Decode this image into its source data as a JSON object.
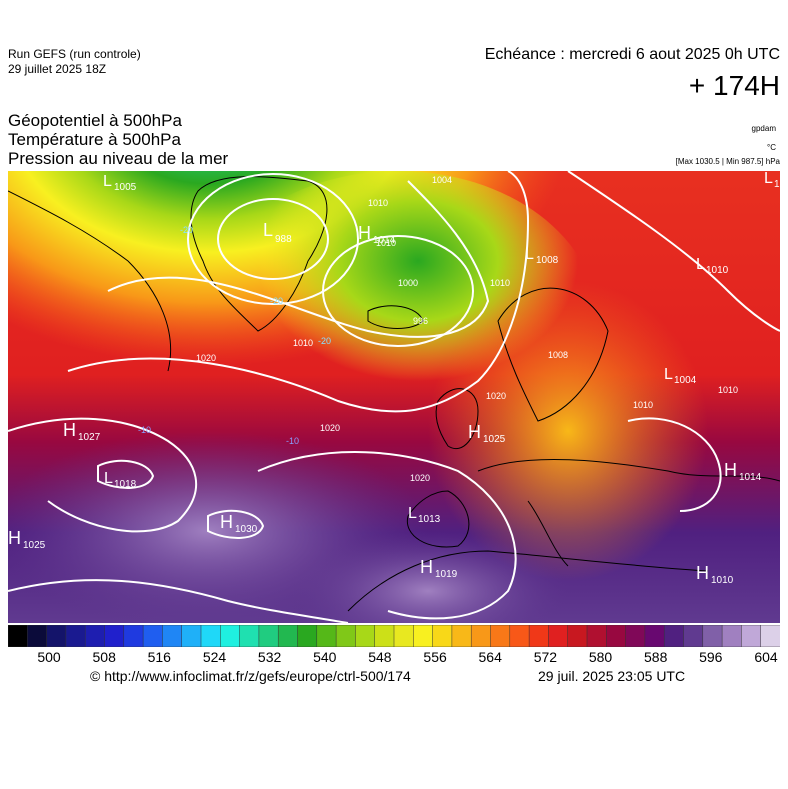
{
  "header": {
    "run": "Run GEFS (run controle)",
    "run_date": "29 juillet 2025 18Z",
    "valid": "Echéance : mercredi 6 aout 2025 0h UTC",
    "lead": "+ 174H",
    "field1": "Géopotentiel à 500hPa",
    "field2": "Température à 500hPa",
    "field3": "Pression au niveau de la mer",
    "unit1": "gpdam",
    "unit2": "°C",
    "unit3": "[Max 1030.5 | Min 987.5] hPa"
  },
  "map": {
    "pressure_centers": [
      {
        "type": "L",
        "value": "1005"
      },
      {
        "type": "L",
        "value": "988"
      },
      {
        "type": "H",
        "value": "1014"
      },
      {
        "type": "L",
        "value": "1008"
      },
      {
        "type": "L",
        "value": "1010"
      },
      {
        "type": "L",
        "value": "1"
      },
      {
        "type": "H",
        "value": "1027"
      },
      {
        "type": "L",
        "value": "1018"
      },
      {
        "type": "H",
        "value": "1030"
      },
      {
        "type": "H",
        "value": "1025"
      },
      {
        "type": "L",
        "value": "1013"
      },
      {
        "type": "H",
        "value": "1019"
      },
      {
        "type": "H",
        "value": "1025"
      },
      {
        "type": "L",
        "value": "1004"
      },
      {
        "type": "H",
        "value": "1014"
      },
      {
        "type": "H",
        "value": "1010"
      }
    ],
    "isobar_labels": [
      "1004",
      "1010",
      "1010",
      "1000",
      "996",
      "1010",
      "1020",
      "1020",
      "1020",
      "1020",
      "1010",
      "1010",
      "1010",
      "1008",
      "-20",
      "-20",
      "-20",
      "-10",
      "-10"
    ]
  },
  "colorbar": {
    "colors": [
      "#000000",
      "#0b0b3a",
      "#14146a",
      "#1a1a90",
      "#1e1eb0",
      "#2020cc",
      "#1f3ae0",
      "#1f5ef0",
      "#1f86f5",
      "#1fb0f8",
      "#1fd8f8",
      "#1ff0e0",
      "#1fe0b0",
      "#20cc80",
      "#22b850",
      "#2aa820",
      "#55b818",
      "#80c818",
      "#a8d818",
      "#cce018",
      "#e8e820",
      "#f8f020",
      "#f8d818",
      "#f8b818",
      "#f89818",
      "#f87818",
      "#f85818",
      "#f03818",
      "#e02020",
      "#c81820",
      "#b01030",
      "#980840",
      "#800858",
      "#680870",
      "#502080",
      "#603a90",
      "#8060a8",
      "#a080c0",
      "#c0a8d8",
      "#dcd0e8"
    ],
    "ticks": [
      "500",
      "508",
      "516",
      "524",
      "532",
      "540",
      "548",
      "556",
      "564",
      "572",
      "580",
      "588",
      "596",
      "604"
    ]
  },
  "footer": {
    "source": "© http://www.infoclimat.fr/z/gefs/europe/ctrl-500/174",
    "generated": "29 juil. 2025 23:05 UTC"
  }
}
